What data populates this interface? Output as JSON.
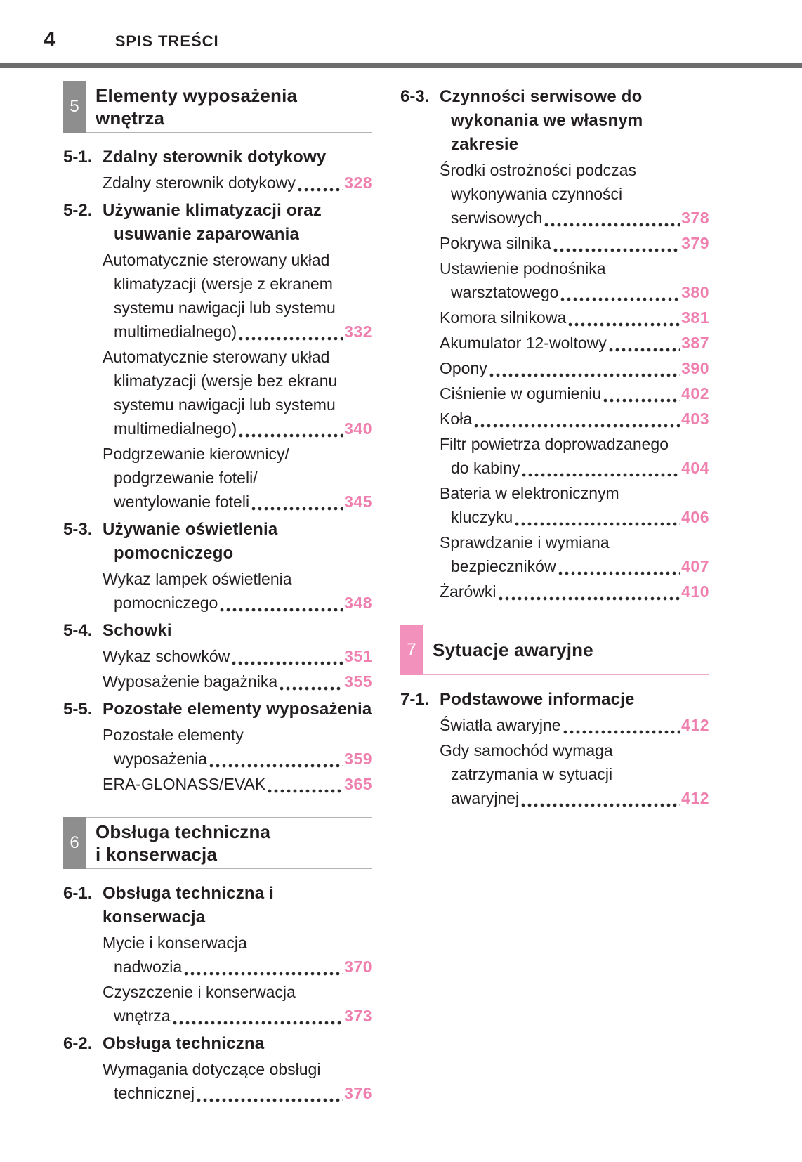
{
  "header": {
    "page_number": "4",
    "title": "SPIS TREŚCI"
  },
  "colors": {
    "pink_number": "#ee7fae",
    "gray_tab": "#8e8e8e",
    "pink_tab": "#f291bb",
    "gray_box_border": "#b4b4b4",
    "pink_box_border": "#efa9c8",
    "header_rule": "#6d6d6d",
    "text": "#231f20"
  },
  "columns": {
    "left": [
      {
        "type": "banner",
        "num": "5",
        "scheme": "gray",
        "title_lines": [
          "Elementy wyposażenia",
          "wnętrza"
        ]
      },
      {
        "type": "chapter",
        "num": "5-1.",
        "title_lines": [
          "Zdalny sterownik dotykowy"
        ]
      },
      {
        "type": "item",
        "lines": [
          "Zdalny sterownik dotykowy"
        ],
        "page": "328"
      },
      {
        "type": "chapter",
        "num": "5-2.",
        "title_lines": [
          "Używanie klimatyzacji oraz",
          "usuwanie zaparowania"
        ]
      },
      {
        "type": "item",
        "lines": [
          "Automatycznie sterowany układ",
          "klimatyzacji (wersje z ekranem",
          "systemu nawigacji lub systemu",
          "multimedialnego)"
        ],
        "page": "332"
      },
      {
        "type": "item",
        "lines": [
          "Automatycznie sterowany układ",
          "klimatyzacji (wersje bez ekranu",
          "systemu nawigacji lub systemu",
          "multimedialnego)"
        ],
        "page": "340"
      },
      {
        "type": "item",
        "lines": [
          "Podgrzewanie kierownicy/",
          "podgrzewanie foteli/",
          "wentylowanie foteli"
        ],
        "page": "345"
      },
      {
        "type": "chapter",
        "num": "5-3.",
        "title_lines": [
          "Używanie oświetlenia",
          "pomocniczego"
        ]
      },
      {
        "type": "item",
        "lines": [
          "Wykaz lampek oświetlenia",
          "pomocniczego"
        ],
        "page": "348"
      },
      {
        "type": "chapter",
        "num": "5-4.",
        "title_lines": [
          "Schowki"
        ]
      },
      {
        "type": "item",
        "lines": [
          "Wykaz schowków"
        ],
        "page": "351"
      },
      {
        "type": "item",
        "lines": [
          "Wyposażenie bagażnika"
        ],
        "page": "355"
      },
      {
        "type": "chapter",
        "num": "5-5.",
        "title_lines": [
          "Pozostałe elementy wyposażenia"
        ]
      },
      {
        "type": "item",
        "lines": [
          "Pozostałe elementy",
          "wyposażenia"
        ],
        "page": "359"
      },
      {
        "type": "item",
        "lines": [
          "ERA-GLONASS/EVAK"
        ],
        "page": "365"
      },
      {
        "type": "banner",
        "num": "6",
        "scheme": "gray",
        "title_lines": [
          "Obsługa techniczna",
          "i konserwacja"
        ]
      },
      {
        "type": "chapter",
        "num": "6-1.",
        "title_lines": [
          "Obsługa techniczna i konserwacja"
        ]
      },
      {
        "type": "item",
        "lines": [
          "Mycie i konserwacja",
          "nadwozia"
        ],
        "page": "370"
      },
      {
        "type": "item",
        "lines": [
          "Czyszczenie i konserwacja",
          "wnętrza"
        ],
        "page": "373"
      },
      {
        "type": "chapter",
        "num": "6-2.",
        "title_lines": [
          "Obsługa techniczna"
        ]
      },
      {
        "type": "item",
        "lines": [
          "Wymagania dotyczące obsługi",
          "technicznej"
        ],
        "page": "376"
      }
    ],
    "right": [
      {
        "type": "chapter",
        "num": "6-3.",
        "title_lines": [
          "Czynności serwisowe do",
          "wykonania we własnym zakresie"
        ]
      },
      {
        "type": "item",
        "lines": [
          "Środki ostrożności podczas",
          "wykonywania czynności",
          "serwisowych"
        ],
        "page": "378"
      },
      {
        "type": "item",
        "lines": [
          "Pokrywa silnika"
        ],
        "page": "379"
      },
      {
        "type": "item",
        "lines": [
          "Ustawienie podnośnika",
          "warsztatowego"
        ],
        "page": "380"
      },
      {
        "type": "item",
        "lines": [
          "Komora silnikowa"
        ],
        "page": "381"
      },
      {
        "type": "item",
        "lines": [
          "Akumulator 12-woltowy"
        ],
        "page": "387"
      },
      {
        "type": "item",
        "lines": [
          "Opony"
        ],
        "page": "390"
      },
      {
        "type": "item",
        "lines": [
          "Ciśnienie w ogumieniu"
        ],
        "page": "402"
      },
      {
        "type": "item",
        "lines": [
          "Koła"
        ],
        "page": "403"
      },
      {
        "type": "item",
        "lines": [
          "Filtr powietrza doprowadzanego",
          "do kabiny"
        ],
        "page": "404"
      },
      {
        "type": "item",
        "lines": [
          "Bateria w elektronicznym",
          "kluczyku"
        ],
        "page": "406"
      },
      {
        "type": "item",
        "lines": [
          "Sprawdzanie i wymiana",
          "bezpieczników"
        ],
        "page": "407"
      },
      {
        "type": "item",
        "lines": [
          "Żarówki"
        ],
        "page": "410"
      },
      {
        "type": "banner",
        "num": "7",
        "scheme": "pink",
        "title_lines": [
          "Sytuacje awaryjne"
        ]
      },
      {
        "type": "chapter",
        "num": "7-1.",
        "title_lines": [
          "Podstawowe informacje"
        ]
      },
      {
        "type": "item",
        "lines": [
          "Światła awaryjne"
        ],
        "page": "412"
      },
      {
        "type": "item",
        "lines": [
          "Gdy samochód wymaga",
          "zatrzymania w sytuacji",
          "awaryjnej"
        ],
        "page": "412"
      }
    ]
  }
}
